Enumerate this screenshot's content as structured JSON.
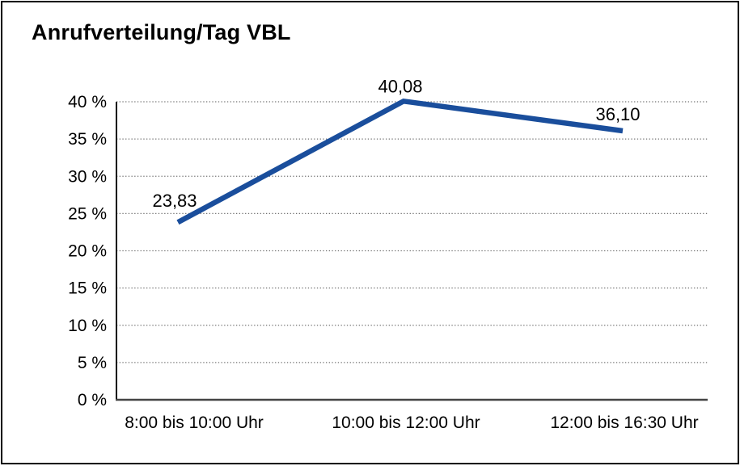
{
  "frame": {
    "background": "#FFFFFF",
    "border_color": "#000000"
  },
  "chart_data": {
    "type": "line",
    "title": "Anrufverteilung/Tag VBL",
    "categories": [
      "8:00 bis 10:00 Uhr",
      "10:00 bis 12:00 Uhr",
      "12:00 bis 16:30 Uhr"
    ],
    "values": [
      23.83,
      40.08,
      36.1
    ],
    "point_labels": [
      "23,83",
      "40,08",
      "36,10"
    ],
    "y_ticks": [
      {
        "value": 0,
        "label": "0 %"
      },
      {
        "value": 5,
        "label": "5 %"
      },
      {
        "value": 10,
        "label": "10 %"
      },
      {
        "value": 15,
        "label": "15 %"
      },
      {
        "value": 20,
        "label": "20 %"
      },
      {
        "value": 25,
        "label": "25 %"
      },
      {
        "value": 30,
        "label": "30 %"
      },
      {
        "value": 35,
        "label": "35 %"
      },
      {
        "value": 40,
        "label": "40 %"
      }
    ],
    "ylim": [
      0,
      40
    ],
    "xlabel": "",
    "ylabel": "",
    "legend": "none",
    "grid": "horizontal-dotted",
    "colors": {
      "line": "#1A4E9C",
      "grid": "#707070",
      "y_axis": "#000000",
      "x_axis": "#444444",
      "text": "#000000"
    }
  }
}
